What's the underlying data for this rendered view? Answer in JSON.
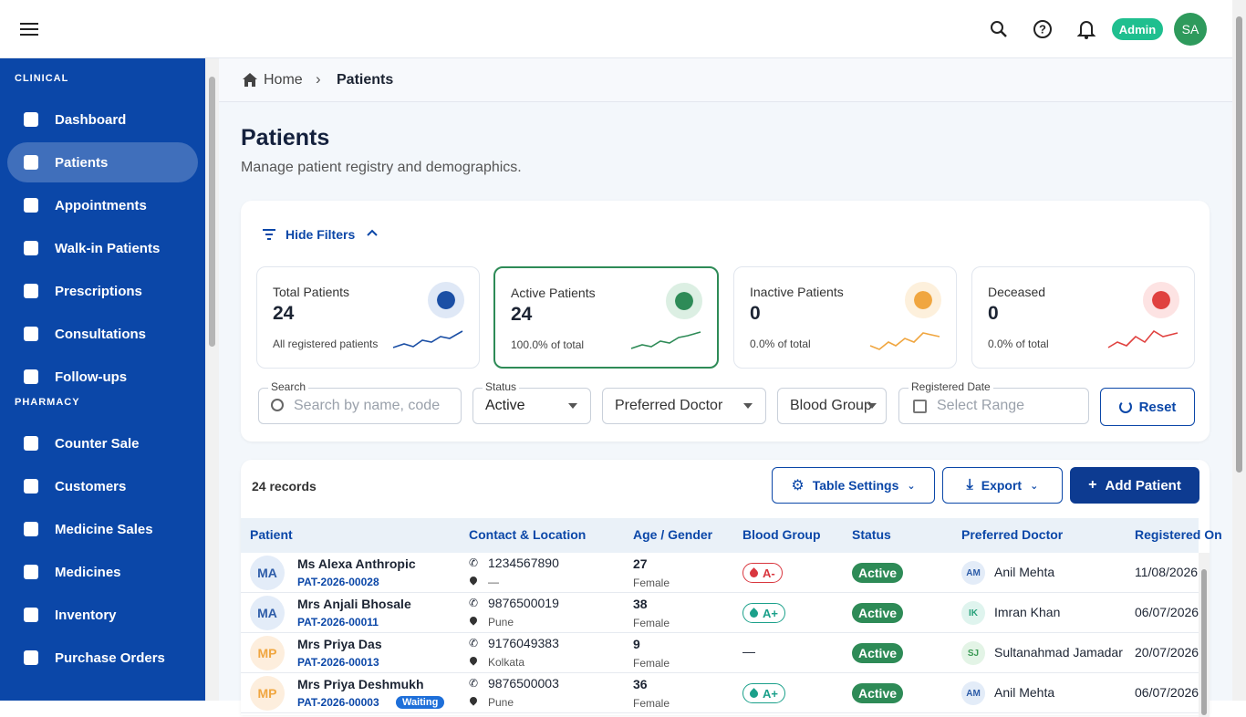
{
  "topbar": {
    "role": "Admin",
    "avatar": "SA"
  },
  "sidebar": {
    "sections": [
      {
        "title": "CLINICAL",
        "items": [
          "Dashboard",
          "Patients",
          "Appointments",
          "Walk-in Patients",
          "Prescriptions",
          "Consultations",
          "Follow-ups"
        ]
      },
      {
        "title": "PHARMACY",
        "items": [
          "Counter Sale",
          "Customers",
          "Medicine Sales",
          "Medicines",
          "Inventory",
          "Purchase Orders"
        ]
      }
    ],
    "active": "Patients"
  },
  "breadcrumb": [
    "Home",
    "Patients"
  ],
  "header": {
    "title": "Patients",
    "subtitle": "Manage patient registry and demographics."
  },
  "filters": {
    "toggle": "Hide Filters",
    "stats": [
      {
        "label": "Total Patients",
        "value": 24,
        "note": "All registered patients"
      },
      {
        "label": "Active Patients",
        "value": 24,
        "note": "100.0% of total"
      },
      {
        "label": "Inactive Patients",
        "value": 0,
        "note": "0.0% of total"
      },
      {
        "label": "Deceased",
        "value": 0,
        "note": "0.0% of total"
      }
    ],
    "search": {
      "label": "Search",
      "placeholder": "Search by name, code"
    },
    "status": {
      "label": "Status",
      "value": "Active"
    },
    "doctor": "Preferred Doctor",
    "blood": "Blood Group",
    "date": {
      "label": "Registered Date",
      "placeholder": "Select Range"
    },
    "reset": "Reset"
  },
  "table": {
    "records": "24 records",
    "actions": [
      "Table Settings",
      "Export",
      "Add Patient"
    ],
    "columns": [
      "Patient",
      "Contact & Location",
      "Age / Gender",
      "Blood Group",
      "Status",
      "Preferred Doctor",
      "Registered On"
    ],
    "rows": [
      {
        "initials": "MA",
        "name": "Ms Alexa Anthropic",
        "code": "PAT-2026-00028",
        "phone": "1234567890",
        "location": "—",
        "age": 27,
        "gender": "Female",
        "blood": "A-",
        "status": "Active",
        "doctor_initials": "AM",
        "doctor": "Anil Mehta",
        "date": "11/08/2026"
      },
      {
        "initials": "MA",
        "name": "Mrs Anjali Bhosale",
        "code": "PAT-2026-00011",
        "phone": "9876500019",
        "location": "Pune",
        "age": 38,
        "gender": "Female",
        "blood": "A+",
        "status": "Active",
        "doctor_initials": "IK",
        "doctor": "Imran Khan",
        "date": "06/07/2026"
      },
      {
        "initials": "MP",
        "name": "Mrs Priya Das",
        "code": "PAT-2026-00013",
        "phone": "9176049383",
        "location": "Kolkata",
        "age": 9,
        "gender": "Female",
        "blood": "—",
        "status": "Active",
        "doctor_initials": "SJ",
        "doctor": "Sultanahmad Jamadar",
        "date": "20/07/2026"
      },
      {
        "initials": "MP",
        "name": "Mrs Priya Deshmukh",
        "code": "PAT-2026-00003",
        "badge": "Waiting",
        "phone": "9876500003",
        "location": "Pune",
        "age": 36,
        "gender": "Female",
        "blood": "A+",
        "status": "Active",
        "doctor_initials": "AM",
        "doctor": "Anil Mehta",
        "date": "06/07/2026"
      }
    ]
  }
}
